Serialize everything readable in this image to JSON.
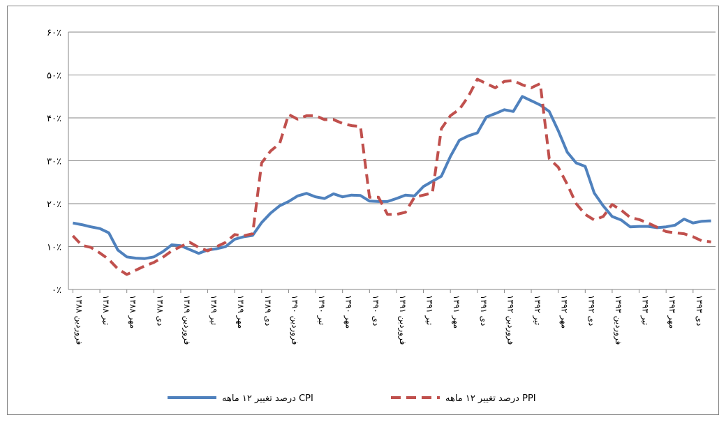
{
  "chart_data": {
    "type": "line",
    "categories": [
      "فروردین ۱۳۸۸",
      null,
      null,
      "تیر ۱۳۸۸",
      null,
      null,
      "مهر ۱۳۸۸",
      null,
      null,
      "دی ۱۳۸۸",
      null,
      null,
      "فروردین ۱۳۸۹",
      null,
      null,
      "تیر ۱۳۸۹",
      null,
      null,
      "مهر ۱۳۸۹",
      null,
      null,
      "دی ۱۳۸۹",
      null,
      null,
      "فروردین ۱۳۹۰",
      null,
      null,
      "تیر ۱۳۹۰",
      null,
      null,
      "مهر ۱۳۹۰",
      null,
      null,
      "دی ۱۳۹۰",
      null,
      null,
      "فروردین ۱۳۹۱",
      null,
      null,
      "تیر ۱۳۹۱",
      null,
      null,
      "مهر ۱۳۹۱",
      null,
      null,
      "دی ۱۳۹۱",
      null,
      null,
      "فروردین ۱۳۹۲",
      null,
      null,
      "تیر ۱۳۹۲",
      null,
      null,
      "مهر ۱۳۹۲",
      null,
      null,
      "دی ۱۳۹۲",
      null,
      null,
      "فروردین ۱۳۹۳",
      null,
      null,
      "تیر ۱۳۹۳",
      null,
      null,
      "مهر ۱۳۹۳",
      null,
      null,
      "دی ۱۳۹۳",
      null,
      null
    ],
    "series": [
      {
        "name": "درصد تغییر ۱۲ ماهه CPI",
        "color": "#4f81bd",
        "dash": false,
        "values": [
          15.5,
          15.1,
          14.6,
          14.2,
          13.2,
          9.2,
          7.6,
          7.3,
          7.2,
          7.6,
          8.8,
          10.4,
          10.2,
          9.3,
          8.4,
          9.2,
          9.5,
          10.0,
          11.7,
          12.3,
          12.6,
          15.6,
          17.8,
          19.5,
          20.5,
          21.8,
          22.4,
          21.6,
          21.2,
          22.3,
          21.6,
          22.0,
          21.9,
          20.6,
          20.5,
          20.5,
          21.2,
          22.0,
          21.8,
          24.0,
          25.2,
          26.4,
          31.0,
          34.8,
          35.8,
          36.5,
          40.2,
          41.0,
          41.9,
          41.5,
          45.0,
          44.0,
          43.0,
          41.5,
          37.0,
          32.0,
          29.5,
          28.7,
          22.5,
          19.5,
          17.0,
          16.2,
          14.6,
          14.7,
          14.7,
          14.4,
          14.6,
          15.0,
          16.4,
          15.5,
          15.9,
          16.0
        ]
      },
      {
        "name": "درصد تغییر ۱۲ ماهه PPI",
        "color": "#c0504d",
        "dash": true,
        "values": [
          12.5,
          10.3,
          9.8,
          8.5,
          7.0,
          4.8,
          3.5,
          4.5,
          5.5,
          6.3,
          7.5,
          9.0,
          10.0,
          11.0,
          9.8,
          9.0,
          10.0,
          11.0,
          12.8,
          12.5,
          13.0,
          29.5,
          32.3,
          34.0,
          40.8,
          39.7,
          40.5,
          40.5,
          39.6,
          39.6,
          38.7,
          38.2,
          38.0,
          21.5,
          21.5,
          17.5,
          17.5,
          18.0,
          21.5,
          22.0,
          22.5,
          37.5,
          40.5,
          42.0,
          45.0,
          49.0,
          48.0,
          47.0,
          48.5,
          48.7,
          47.7,
          47.0,
          48.0,
          30.5,
          28.5,
          24.5,
          20.0,
          17.5,
          16.2,
          17.0,
          19.8,
          18.5,
          16.8,
          16.3,
          15.5,
          14.5,
          13.5,
          13.2,
          13.0,
          12.3,
          11.3,
          11.1
        ]
      }
    ],
    "ylim": [
      0,
      60
    ],
    "yticks": [
      {
        "value": 0,
        "label": "۰٪"
      },
      {
        "value": 10,
        "label": "۱۰٪"
      },
      {
        "value": 20,
        "label": "۲۰٪"
      },
      {
        "value": 30,
        "label": "۳۰٪"
      },
      {
        "value": 40,
        "label": "۴۰٪"
      },
      {
        "value": 50,
        "label": "۵۰٪"
      },
      {
        "value": 60,
        "label": "۶۰٪"
      }
    ],
    "grid": true,
    "legend": "bottom"
  }
}
